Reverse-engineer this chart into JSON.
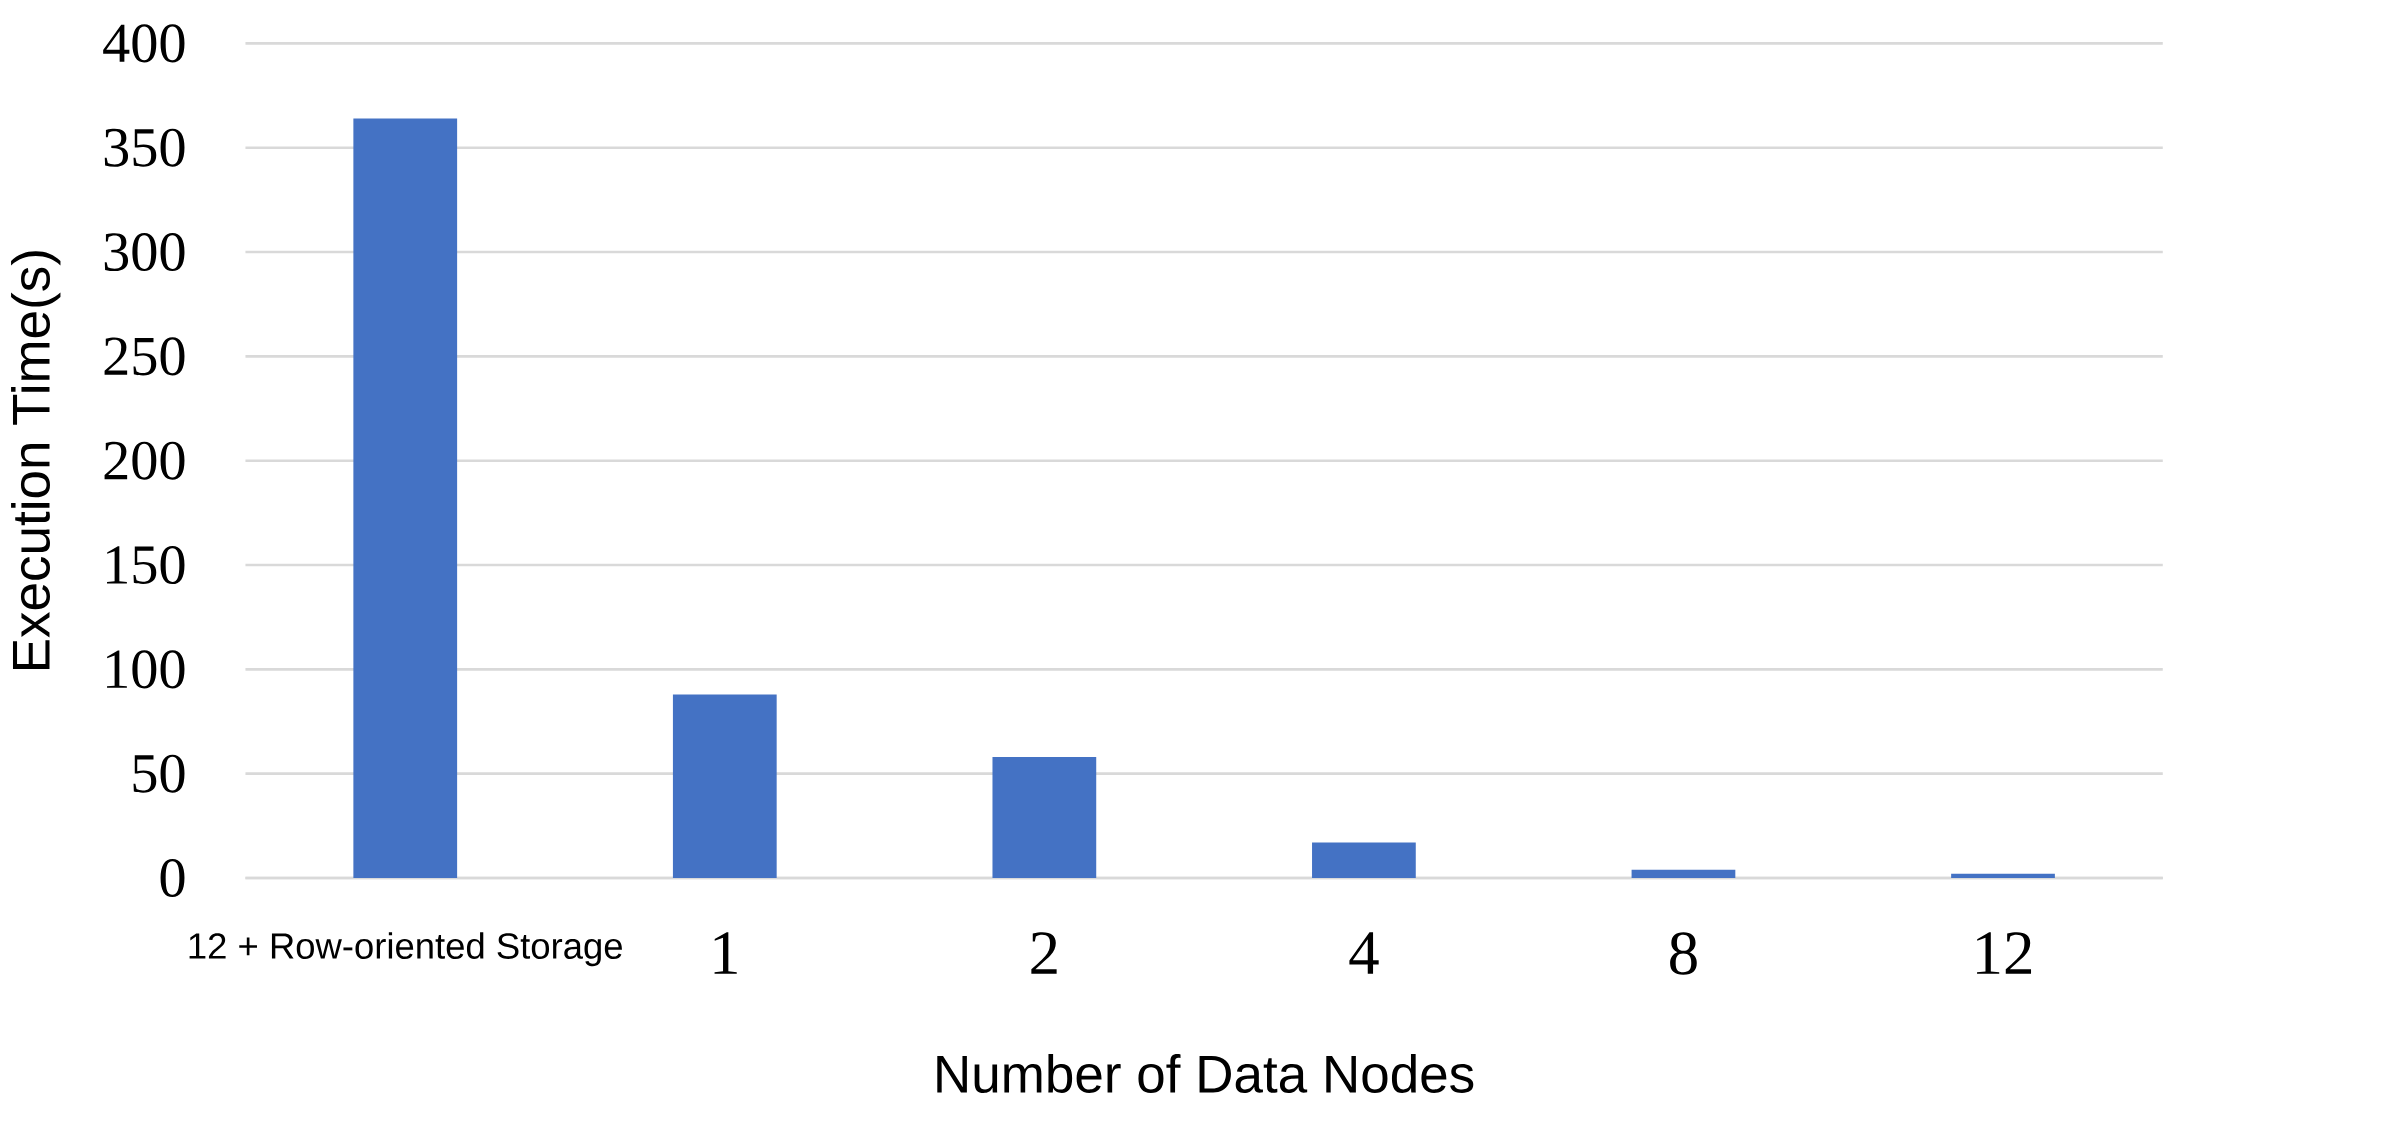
{
  "chart_data": {
    "type": "bar",
    "xlabel": "Number of Data Nodes",
    "ylabel": "Execution Time(s)",
    "categories": [
      "12 + Row-oriented Storage",
      "1",
      "2",
      "4",
      "8",
      "12"
    ],
    "values": [
      364,
      88,
      58,
      17,
      4,
      2
    ],
    "color": "#4472c4",
    "ylim": [
      0,
      400
    ],
    "yticks": [
      0,
      50,
      100,
      150,
      200,
      250,
      300,
      350,
      400
    ],
    "grid": "y"
  }
}
